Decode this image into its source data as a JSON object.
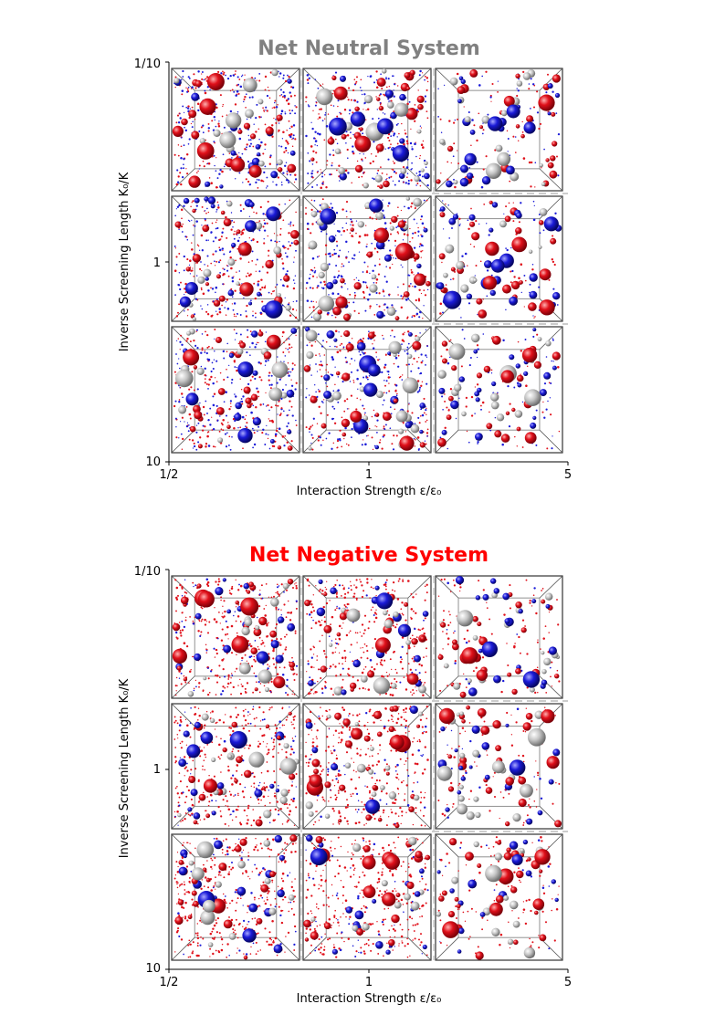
{
  "panels": [
    {
      "title": "Net Neutral System",
      "title_color": "#808080",
      "ylabel": "Inverse Screening Length K₀/K",
      "xlabel": "Interaction Strength ε/ε₀",
      "x_ticks": [
        "1/2",
        "1",
        "5"
      ],
      "y_ticks": [
        "1/10",
        "1",
        "10"
      ],
      "small_particle_mix": "blue-red",
      "grid_rows": 3,
      "grid_cols": 3
    },
    {
      "title": "Net Negative System",
      "title_color": "#ff0000",
      "ylabel": "Inverse Screening Length K₀/K",
      "xlabel": "Interaction Strength ε/ε₀",
      "x_ticks": [
        "1/2",
        "1",
        "5"
      ],
      "y_ticks": [
        "1/10",
        "1",
        "10"
      ],
      "small_particle_mix": "red-dominant",
      "grid_rows": 3,
      "grid_cols": 3
    }
  ],
  "colors": {
    "positive": "#e0101a",
    "negative": "#1a1ad8",
    "neutral": "#b8b8b8",
    "box_frame": "#333333",
    "separator": "#cccccc"
  }
}
